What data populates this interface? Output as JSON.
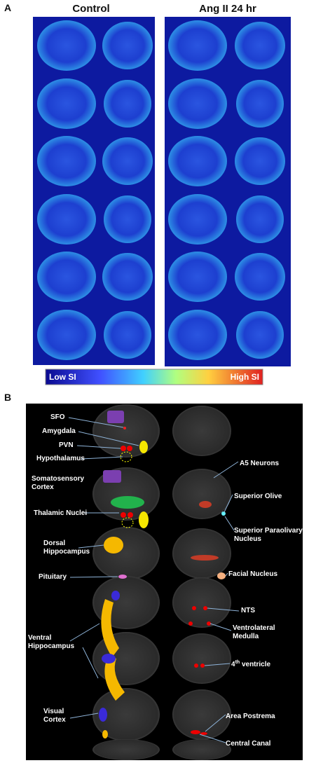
{
  "panel_a": {
    "label": "A",
    "columns": [
      "Control",
      "Ang II 24 hr"
    ],
    "colorbar": {
      "low": "Low SI",
      "high": "High SI"
    }
  },
  "panel_b": {
    "label": "B",
    "left_labels": [
      [
        "SFO"
      ],
      [
        "Amygdala"
      ],
      [
        "PVN"
      ],
      [
        "Hypothalamus"
      ],
      [
        "Somatosensory",
        "Cortex"
      ],
      [
        "Thalamic Nuclei"
      ],
      [
        "Dorsal",
        "Hippocampus"
      ],
      [
        "Pituitary"
      ],
      [
        "Ventral",
        "Hippocampus"
      ],
      [
        "Visual",
        "Cortex"
      ]
    ],
    "right_labels": [
      [
        "A5 Neurons"
      ],
      [
        "Superior Olive"
      ],
      [
        "Superior Paraolivary",
        "Nucleus"
      ],
      [
        "Facial Nucleus"
      ],
      [
        "NTS"
      ],
      [
        "Ventrolateral",
        "Medulla"
      ],
      [
        "Area Postrema"
      ],
      [
        "Central Canal"
      ]
    ],
    "fourth_ventricle": {
      "number": "4",
      "superscript": "th",
      "rest": " ventricle"
    }
  }
}
